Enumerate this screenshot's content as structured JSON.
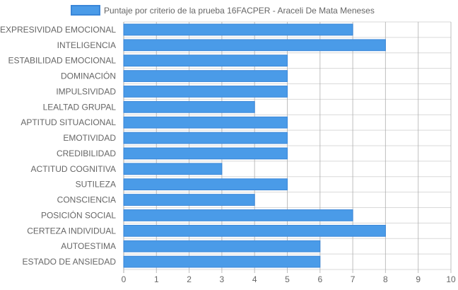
{
  "chart_data": {
    "type": "bar",
    "orientation": "horizontal",
    "categories": [
      "EXPRESIVIDAD EMOCIONAL",
      "INTELIGENCIA",
      "ESTABILIDAD EMOCIONAL",
      "DOMINACIÓN",
      "IMPULSIVIDAD",
      "LEALTAD GRUPAL",
      "APTITUD SITUACIONAL",
      "EMOTIVIDAD",
      "CREDIBILIDAD",
      "ACTITUD COGNITIVA",
      "SUTILEZA",
      "CONSCIENCIA",
      "POSICIÓN SOCIAL",
      "CERTEZA INDIVIDUAL",
      "AUTOESTIMA",
      "ESTADO DE ANSIEDAD"
    ],
    "series": [
      {
        "name": "Puntaje por criterio de la prueba 16FACPER - Araceli De Mata Meneses",
        "values": [
          7,
          8,
          5,
          5,
          5,
          4,
          5,
          5,
          5,
          3,
          5,
          4,
          7,
          8,
          6,
          6
        ]
      }
    ],
    "xlim": [
      0,
      10
    ],
    "x_ticks": [
      "0",
      "1",
      "2",
      "3",
      "4",
      "5",
      "6",
      "7",
      "8",
      "9",
      "10"
    ],
    "grid": true,
    "legend_position": "top",
    "colors": {
      "bar_fill": "#4a9be8",
      "bar_stroke": "#3a86d8",
      "grid": "#d9d9d9",
      "grid_strong": "#aaaaaa",
      "text": "#666666"
    }
  }
}
